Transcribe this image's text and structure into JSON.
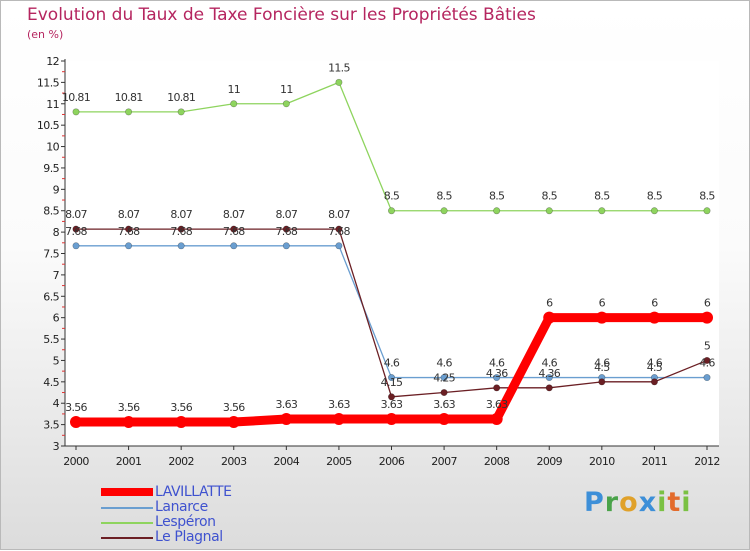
{
  "title": "Evolution du Taux de Taxe Foncière sur les Propriétés Bâties",
  "subtitle": "(en %)",
  "logo": [
    "P",
    "r",
    "o",
    "x",
    "i",
    "t",
    "i"
  ],
  "chart_data": {
    "type": "line",
    "title": "Evolution du Taux de Taxe Foncière sur les Propriétés Bâties",
    "ylabel": "(en %)",
    "xlabel": "",
    "ylim": [
      3,
      12
    ],
    "yticks": [
      "3",
      "3.5",
      "4",
      "4.5",
      "5",
      "5.5",
      "6",
      "6.5",
      "7",
      "7.5",
      "8",
      "8.5",
      "9",
      "9.5",
      "10",
      "10.5",
      "11",
      "11.5",
      "12"
    ],
    "categories": [
      "2000",
      "2001",
      "2002",
      "2003",
      "2004",
      "2005",
      "2006",
      "2007",
      "2008",
      "2009",
      "2010",
      "2011",
      "2012"
    ],
    "series": [
      {
        "name": "LAVILLATTE",
        "color": "#ff0000",
        "values": [
          3.56,
          3.56,
          3.56,
          3.56,
          3.63,
          3.63,
          3.63,
          3.63,
          3.63,
          6,
          6,
          6,
          6
        ],
        "labels": [
          "3.56",
          "3.56",
          "3.56",
          "3.56",
          "3.63",
          "3.63",
          "3.63",
          "3.63",
          "3.63",
          "6",
          "6",
          "6",
          "6"
        ]
      },
      {
        "name": "Lanarce",
        "color": "#6a9ed0",
        "values": [
          7.68,
          7.68,
          7.68,
          7.68,
          7.68,
          7.68,
          4.6,
          4.6,
          4.6,
          4.6,
          4.6,
          4.6,
          4.6
        ],
        "labels": [
          "7.68",
          "7.68",
          "7.68",
          "7.68",
          "7.68",
          "7.68",
          "4.6",
          "4.6",
          "4.6",
          "4.6",
          "4.6",
          "4.6",
          "4.6"
        ]
      },
      {
        "name": "Lespéron",
        "color": "#8ed45e",
        "values": [
          10.81,
          10.81,
          10.81,
          11,
          11,
          11.5,
          8.5,
          8.5,
          8.5,
          8.5,
          8.5,
          8.5,
          8.5
        ],
        "labels": [
          "10.81",
          "10.81",
          "10.81",
          "11",
          "11",
          "11.5",
          "8.5",
          "8.5",
          "8.5",
          "8.5",
          "8.5",
          "8.5",
          "8.5"
        ]
      },
      {
        "name": "Le Plagnal",
        "color": "#6b1f24",
        "values": [
          8.07,
          8.07,
          8.07,
          8.07,
          8.07,
          8.07,
          4.15,
          4.25,
          4.36,
          4.36,
          4.5,
          4.5,
          5
        ],
        "labels": [
          "8.07",
          "8.07",
          "8.07",
          "8.07",
          "8.07",
          "8.07",
          "4.15",
          "4.25",
          "4.36",
          "4.36",
          "4.5",
          "4.5",
          "5"
        ]
      }
    ]
  }
}
